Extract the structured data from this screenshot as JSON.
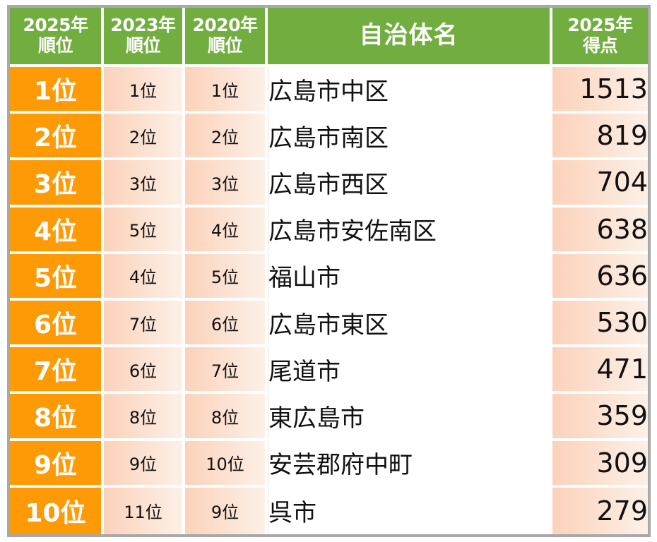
{
  "header": {
    "col_rank_2025": [
      "2025年",
      "順位"
    ],
    "col_rank_2023": [
      "2023年",
      "順位"
    ],
    "col_rank_2020": [
      "2020年",
      "順位"
    ],
    "col_name": "自治体名",
    "col_score": [
      "2025年",
      "得点"
    ]
  },
  "rows": [
    {
      "rank_2025": "1位",
      "rank_2023": "1位",
      "rank_2020": "1位",
      "name": "広島市中区",
      "score": "1513"
    },
    {
      "rank_2025": "2位",
      "rank_2023": "2位",
      "rank_2020": "2位",
      "name": "広島市南区",
      "score": "819"
    },
    {
      "rank_2025": "3位",
      "rank_2023": "3位",
      "rank_2020": "3位",
      "name": "広島市西区",
      "score": "704"
    },
    {
      "rank_2025": "4位",
      "rank_2023": "5位",
      "rank_2020": "4位",
      "name": "広島市安佐南区",
      "score": "638"
    },
    {
      "rank_2025": "5位",
      "rank_2023": "4位",
      "rank_2020": "5位",
      "name": "福山市",
      "score": "636"
    },
    {
      "rank_2025": "6位",
      "rank_2023": "7位",
      "rank_2020": "6位",
      "name": "広島市東区",
      "score": "530"
    },
    {
      "rank_2025": "7位",
      "rank_2023": "6位",
      "rank_2020": "7位",
      "name": "尾道市",
      "score": "471"
    },
    {
      "rank_2025": "8位",
      "rank_2023": "8位",
      "rank_2020": "8位",
      "name": "東広島市",
      "score": "359"
    },
    {
      "rank_2025": "9位",
      "rank_2023": "9位",
      "rank_2020": "10位",
      "name": "安芸郡府中町",
      "score": "309"
    },
    {
      "rank_2025": "10位",
      "rank_2023": "11位",
      "rank_2020": "9位",
      "name": "呉市",
      "score": "279"
    }
  ],
  "colors": {
    "header_green": "#71ad3f",
    "rank_orange": "#fd9a06",
    "peach": "#fbd2ba",
    "frame_gray": "#a8a8a8"
  }
}
